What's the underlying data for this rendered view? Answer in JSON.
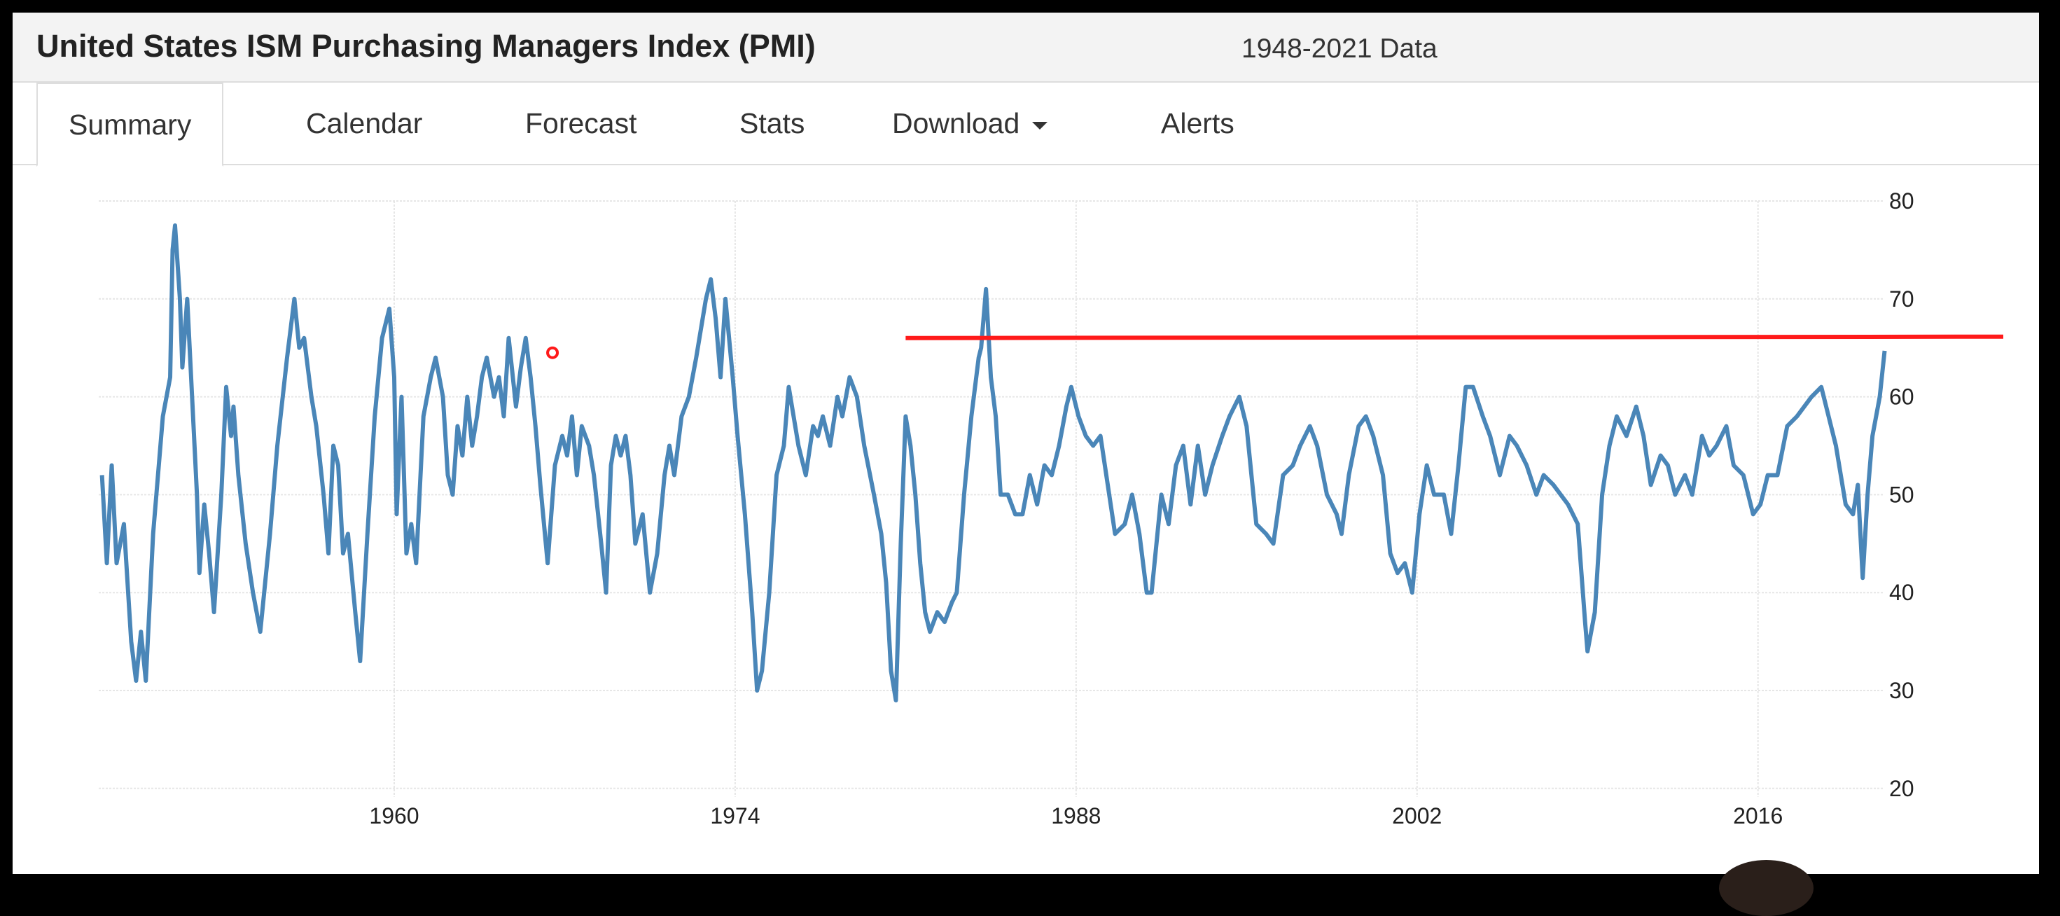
{
  "header": {
    "title": "United States ISM Purchasing Managers Index (PMI)",
    "subtitle": "1948-2021 Data"
  },
  "tabs": [
    {
      "label": "Summary",
      "active": true
    },
    {
      "label": "Calendar"
    },
    {
      "label": "Forecast"
    },
    {
      "label": "Stats"
    },
    {
      "label": "Download",
      "icon": "caret-down-icon"
    },
    {
      "label": "Alerts"
    }
  ],
  "chart_data": {
    "type": "line",
    "title": "",
    "xlabel": "",
    "ylabel": "",
    "xlim": [
      1948,
      2021.3
    ],
    "ylim": [
      20,
      80
    ],
    "x_ticks": [
      "1960",
      "1974",
      "1988",
      "2002",
      "2016"
    ],
    "y_ticks": [
      "80",
      "70",
      "60",
      "50",
      "40",
      "30",
      "20"
    ],
    "y_axis_side": "right",
    "grid": true,
    "series_color": "#4a86b8",
    "annotation": {
      "type": "horizontal-line",
      "value": 66,
      "x_start": 1981,
      "color": "#ff1a1a"
    },
    "cursor_marker": {
      "x": 1966.5,
      "y": 64.5,
      "color": "#ff1a1a"
    },
    "series": [
      {
        "x": [
          1948.0,
          1948.2,
          1948.4,
          1948.6,
          1948.9,
          1949.2,
          1949.4,
          1949.6,
          1949.8,
          1950.1,
          1950.3,
          1950.5,
          1950.8,
          1950.9,
          1951.0,
          1951.2,
          1951.3,
          1951.5,
          1951.7,
          1951.9,
          1952.0,
          1952.2,
          1952.4,
          1952.6,
          1952.9,
          1953.1,
          1953.3,
          1953.4,
          1953.6,
          1953.9,
          1954.2,
          1954.5,
          1954.9,
          1955.2,
          1955.6,
          1955.9,
          1956.1,
          1956.3,
          1956.6,
          1956.8,
          1957.1,
          1957.3,
          1957.5,
          1957.7,
          1957.9,
          1958.1,
          1958.4,
          1958.6,
          1958.9,
          1959.2,
          1959.5,
          1959.8,
          1960.0,
          1960.1,
          1960.3,
          1960.5,
          1960.7,
          1960.9,
          1961.2,
          1961.5,
          1961.7,
          1962.0,
          1962.2,
          1962.4,
          1962.6,
          1962.8,
          1963.0,
          1963.2,
          1963.4,
          1963.6,
          1963.8,
          1964.1,
          1964.3,
          1964.5,
          1964.7,
          1965.0,
          1965.2,
          1965.4,
          1965.6,
          1965.8,
          1966.0,
          1966.3,
          1966.6,
          1966.9,
          1967.1,
          1967.3,
          1967.5,
          1967.7,
          1968.0,
          1968.2,
          1968.5,
          1968.7,
          1968.9,
          1969.1,
          1969.3,
          1969.5,
          1969.7,
          1969.9,
          1970.2,
          1970.5,
          1970.8,
          1971.1,
          1971.3,
          1971.5,
          1971.8,
          1972.1,
          1972.4,
          1972.8,
          1973.0,
          1973.2,
          1973.4,
          1973.6,
          1973.9,
          1974.1,
          1974.4,
          1974.7,
          1974.9,
          1975.1,
          1975.4,
          1975.7,
          1976.0,
          1976.2,
          1976.4,
          1976.6,
          1976.9,
          1977.2,
          1977.4,
          1977.6,
          1977.9,
          1978.2,
          1978.4,
          1978.7,
          1979.0,
          1979.3,
          1979.7,
          1980.0,
          1980.2,
          1980.4,
          1980.6,
          1980.8,
          1981.0,
          1981.2,
          1981.4,
          1981.6,
          1981.8,
          1982.0,
          1982.3,
          1982.6,
          1982.9,
          1983.1,
          1983.4,
          1983.7,
          1984.0,
          1984.1,
          1984.3,
          1984.5,
          1984.7,
          1984.9,
          1985.2,
          1985.5,
          1985.8,
          1986.1,
          1986.4,
          1986.7,
          1987.0,
          1987.3,
          1987.6,
          1987.8,
          1988.1,
          1988.4,
          1988.7,
          1989.0,
          1989.3,
          1989.6,
          1990.0,
          1990.3,
          1990.6,
          1990.9,
          1991.1,
          1991.5,
          1991.8,
          1992.1,
          1992.4,
          1992.7,
          1993.0,
          1993.3,
          1993.6,
          1994.0,
          1994.3,
          1994.7,
          1995.0,
          1995.4,
          1995.8,
          1996.1,
          1996.5,
          1996.9,
          1997.2,
          1997.6,
          1997.9,
          1998.3,
          1998.7,
          1998.9,
          1999.2,
          1999.6,
          1999.9,
          2000.2,
          2000.6,
          2000.9,
          2001.2,
          2001.5,
          2001.8,
          2002.1,
          2002.4,
          2002.7,
          2003.1,
          2003.4,
          2003.7,
          2004.0,
          2004.3,
          2004.7,
          2005.0,
          2005.4,
          2005.8,
          2006.1,
          2006.5,
          2006.9,
          2007.2,
          2007.6,
          2007.9,
          2008.2,
          2008.6,
          2008.9,
          2009.0,
          2009.3,
          2009.6,
          2009.9,
          2010.2,
          2010.6,
          2011.0,
          2011.3,
          2011.6,
          2012.0,
          2012.3,
          2012.6,
          2013.0,
          2013.3,
          2013.7,
          2014.0,
          2014.3,
          2014.7,
          2015.0,
          2015.4,
          2015.8,
          2016.1,
          2016.4,
          2016.8,
          2017.2,
          2017.6,
          2017.9,
          2018.2,
          2018.6,
          2018.9,
          2019.2,
          2019.6,
          2019.9,
          2020.1,
          2020.3,
          2020.5,
          2020.7,
          2021.0,
          2021.2
        ],
        "y": [
          52,
          43,
          53,
          43,
          47,
          35,
          31,
          36,
          31,
          46,
          52,
          58,
          62,
          75,
          77.5,
          70,
          63,
          70,
          60,
          50,
          42,
          49,
          44,
          38,
          50,
          61,
          56,
          59,
          52,
          45,
          40,
          36,
          46,
          55,
          64,
          70,
          65,
          66,
          60,
          57,
          50,
          44,
          55,
          53,
          44,
          46,
          38,
          33,
          46,
          58,
          66,
          69,
          62,
          48,
          60,
          44,
          47,
          43,
          58,
          62,
          64,
          60,
          52,
          50,
          57,
          54,
          60,
          55,
          58,
          62,
          64,
          60,
          62,
          58,
          66,
          59,
          63,
          66,
          62,
          57,
          51,
          43,
          53,
          56,
          54,
          58,
          52,
          57,
          55,
          52,
          45,
          40,
          53,
          56,
          54,
          56,
          52,
          45,
          48,
          40,
          44,
          52,
          55,
          52,
          58,
          60,
          64,
          70,
          72,
          68,
          62,
          70,
          62,
          56,
          48,
          38,
          30,
          32,
          40,
          52,
          55,
          61,
          58,
          55,
          52,
          57,
          56,
          58,
          55,
          60,
          58,
          62,
          60,
          55,
          50,
          46,
          41,
          32,
          29,
          45,
          58,
          55,
          50,
          43,
          38,
          36,
          38,
          37,
          39,
          40,
          50,
          58,
          64,
          65,
          71,
          62,
          58,
          50,
          50,
          48,
          48,
          52,
          49,
          53,
          52,
          55,
          59,
          61,
          58,
          56,
          55,
          56,
          51,
          46,
          47,
          50,
          46,
          40,
          40,
          50,
          47,
          53,
          55,
          49,
          55,
          50,
          53,
          56,
          58,
          60,
          57,
          47,
          46,
          45,
          52,
          53,
          55,
          57,
          55,
          50,
          48,
          46,
          52,
          57,
          58,
          56,
          52,
          44,
          42,
          43,
          40,
          48,
          53,
          50,
          50,
          46,
          53,
          61,
          61,
          58,
          56,
          52,
          56,
          55,
          53,
          50,
          52,
          51,
          50,
          49,
          47,
          37,
          34,
          38,
          50,
          55,
          58,
          56,
          59,
          56,
          51,
          54,
          53,
          50,
          52,
          50,
          56,
          54,
          55,
          57,
          53,
          52,
          48,
          49,
          52,
          52,
          57,
          58,
          59,
          60,
          61,
          58,
          55,
          49,
          48,
          51,
          41.5,
          50,
          56,
          60,
          64.7
        ]
      }
    ]
  }
}
